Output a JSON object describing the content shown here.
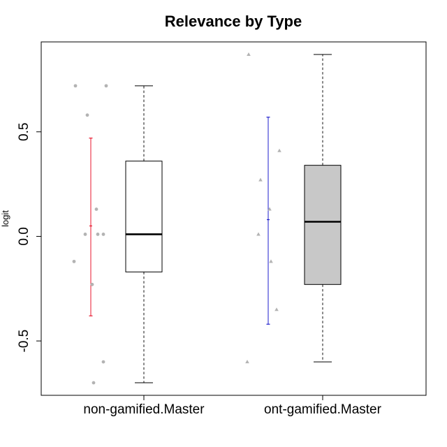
{
  "chart_data": {
    "type": "boxplot",
    "title": "Relevance by Type",
    "xlabel": "",
    "ylabel": "logit",
    "ylim": [
      -0.76,
      0.93
    ],
    "yticks": [
      -0.5,
      0.0,
      0.5
    ],
    "ytick_labels": [
      "-0.5",
      "0.0",
      "0.5"
    ],
    "grid": false,
    "categories": [
      "non-gamified.Master",
      "ont-gamified.Master"
    ],
    "boxes": [
      {
        "category": "non-gamified.Master",
        "fill": "#ffffff",
        "min": -0.7,
        "q1": -0.17,
        "median": 0.01,
        "q3": 0.36,
        "max": 0.72,
        "points": [
          0.72,
          0.72,
          0.58,
          0.13,
          0.01,
          0.01,
          0.01,
          -0.12,
          -0.23,
          -0.6,
          -0.7
        ],
        "point_color": "#b3b3b3",
        "interval": {
          "low": -0.38,
          "mid": 0.05,
          "high": 0.47,
          "color": "#e8152c"
        }
      },
      {
        "category": "ont-gamified.Master",
        "fill": "#c8c8c8",
        "min": -0.6,
        "q1": -0.23,
        "median": 0.07,
        "q3": 0.34,
        "max": 0.87,
        "points": [
          0.87,
          0.41,
          0.27,
          0.13,
          0.01,
          -0.12,
          -0.35,
          -0.6
        ],
        "point_color": "#b3b3b3",
        "interval": {
          "low": -0.42,
          "mid": 0.08,
          "high": 0.57,
          "color": "#1d1dcc"
        }
      }
    ]
  }
}
